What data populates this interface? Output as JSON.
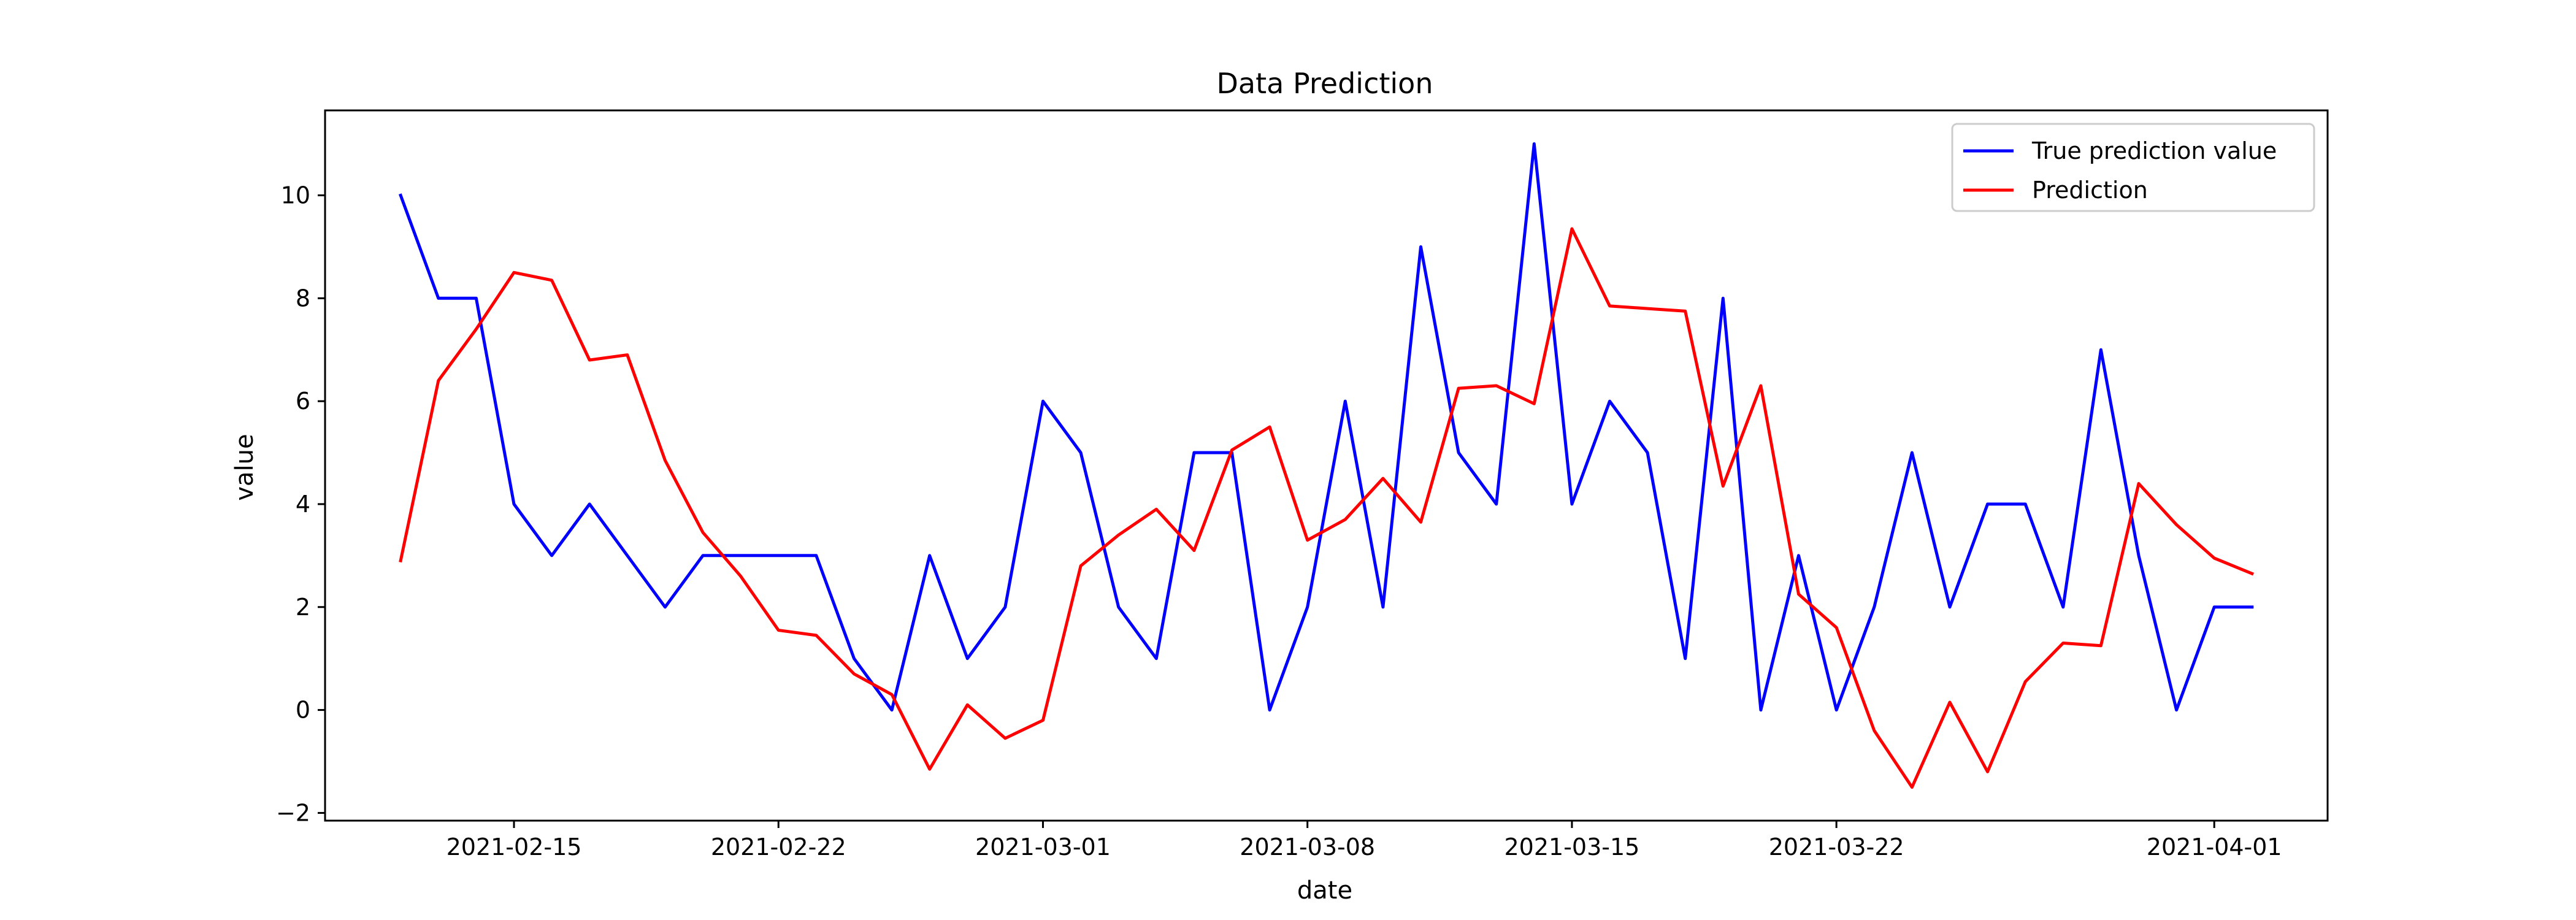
{
  "chart_data": {
    "type": "line",
    "title": "Data Prediction",
    "xlabel": "date",
    "ylabel": "value",
    "x_tick_labels": [
      "2021-02-15",
      "2021-02-22",
      "2021-03-01",
      "2021-03-08",
      "2021-03-15",
      "2021-03-22",
      "2021-04-01"
    ],
    "y_tick_labels": [
      "−2",
      "0",
      "2",
      "4",
      "6",
      "8",
      "10"
    ],
    "xlim": [
      "2021-02-10",
      "2021-04-04"
    ],
    "ylim": [
      -2.15,
      11.65
    ],
    "grid": false,
    "legend_position": "top-right",
    "x": [
      "2021-02-12",
      "2021-02-13",
      "2021-02-14",
      "2021-02-15",
      "2021-02-16",
      "2021-02-17",
      "2021-02-18",
      "2021-02-19",
      "2021-02-20",
      "2021-02-21",
      "2021-02-22",
      "2021-02-23",
      "2021-02-24",
      "2021-02-25",
      "2021-02-26",
      "2021-02-27",
      "2021-02-28",
      "2021-03-01",
      "2021-03-02",
      "2021-03-03",
      "2021-03-04",
      "2021-03-05",
      "2021-03-06",
      "2021-03-07",
      "2021-03-08",
      "2021-03-09",
      "2021-03-10",
      "2021-03-11",
      "2021-03-12",
      "2021-03-13",
      "2021-03-14",
      "2021-03-15",
      "2021-03-16",
      "2021-03-17",
      "2021-03-18",
      "2021-03-19",
      "2021-03-20",
      "2021-03-21",
      "2021-03-22",
      "2021-03-23",
      "2021-03-24",
      "2021-03-25",
      "2021-03-26",
      "2021-03-27",
      "2021-03-28",
      "2021-03-29",
      "2021-03-30",
      "2021-03-31",
      "2021-04-01",
      "2021-04-02"
    ],
    "series": [
      {
        "name": "True prediction value",
        "color": "#0000ff",
        "values": [
          10,
          8,
          8,
          4,
          3,
          4,
          3,
          2,
          3,
          3,
          3,
          3,
          1,
          0,
          3,
          1,
          2,
          6,
          5,
          2,
          1,
          5,
          5,
          0,
          2,
          6,
          2,
          9,
          5,
          4,
          11,
          4,
          6,
          5,
          1,
          8,
          0,
          3,
          0,
          2,
          5,
          2,
          4,
          4,
          2,
          7,
          3,
          0,
          2,
          2
        ]
      },
      {
        "name": "Prediction",
        "color": "#ff0000",
        "values": [
          2.9,
          6.4,
          7.4,
          8.5,
          8.35,
          6.8,
          6.9,
          4.85,
          3.45,
          2.6,
          1.55,
          1.45,
          0.7,
          0.3,
          -1.15,
          0.1,
          -0.55,
          -0.2,
          2.8,
          3.4,
          3.9,
          3.1,
          5.05,
          5.5,
          3.3,
          3.7,
          4.5,
          3.65,
          6.25,
          6.3,
          5.95,
          9.35,
          7.85,
          7.8,
          7.75,
          4.35,
          6.3,
          2.25,
          1.6,
          -0.4,
          -1.5,
          0.15,
          -1.2,
          0.55,
          1.3,
          1.25,
          4.4,
          3.6,
          2.95,
          2.65
        ]
      }
    ]
  }
}
